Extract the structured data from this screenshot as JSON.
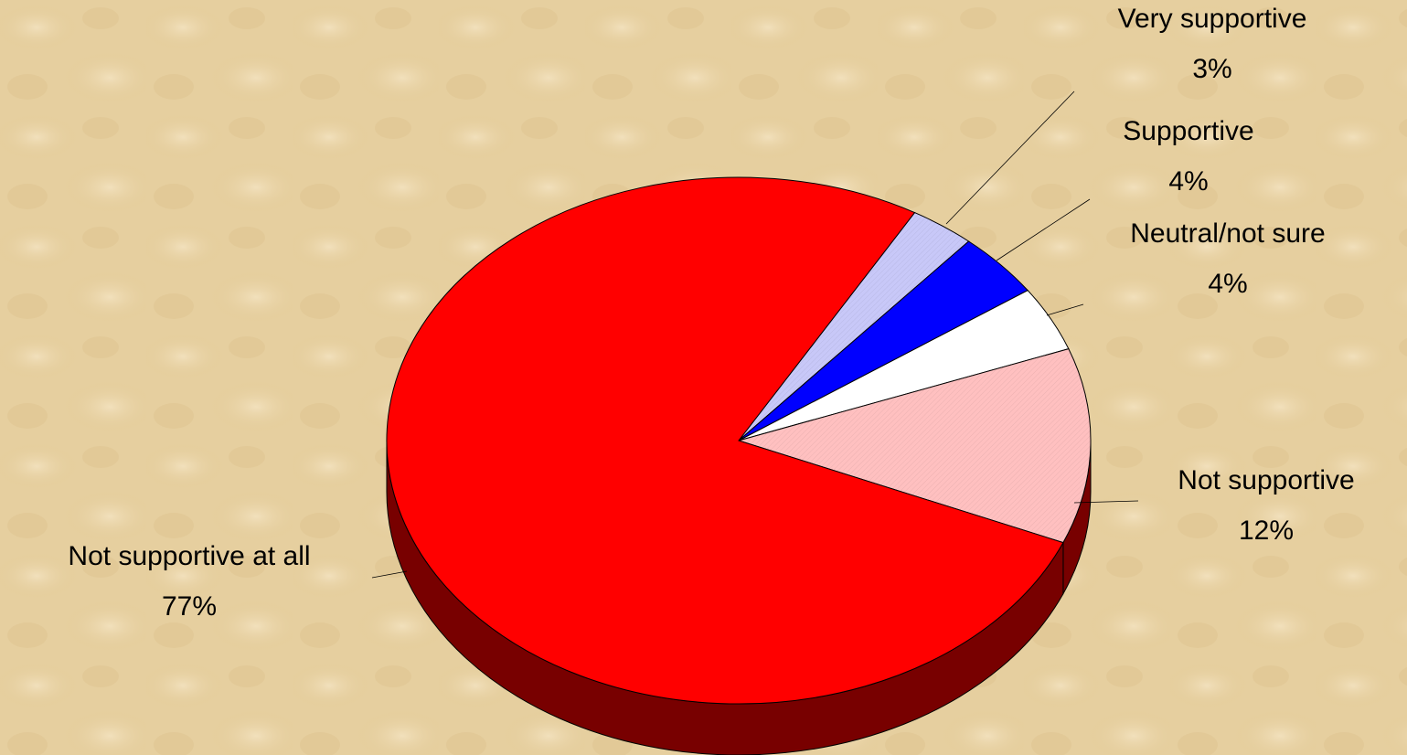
{
  "chart_data": {
    "type": "pie",
    "categories": [
      "Very supportive",
      "Supportive",
      "Neutral/not sure",
      "Not supportive",
      "Not supportive at all"
    ],
    "values": [
      3,
      4,
      4,
      12,
      77
    ],
    "value_labels": [
      "3%",
      "4%",
      "4%",
      "12%",
      "77%"
    ],
    "colors": [
      "#c8c8f8",
      "#0000ff",
      "#ffffff",
      "#ffc0c0",
      "#ff0000"
    ]
  }
}
